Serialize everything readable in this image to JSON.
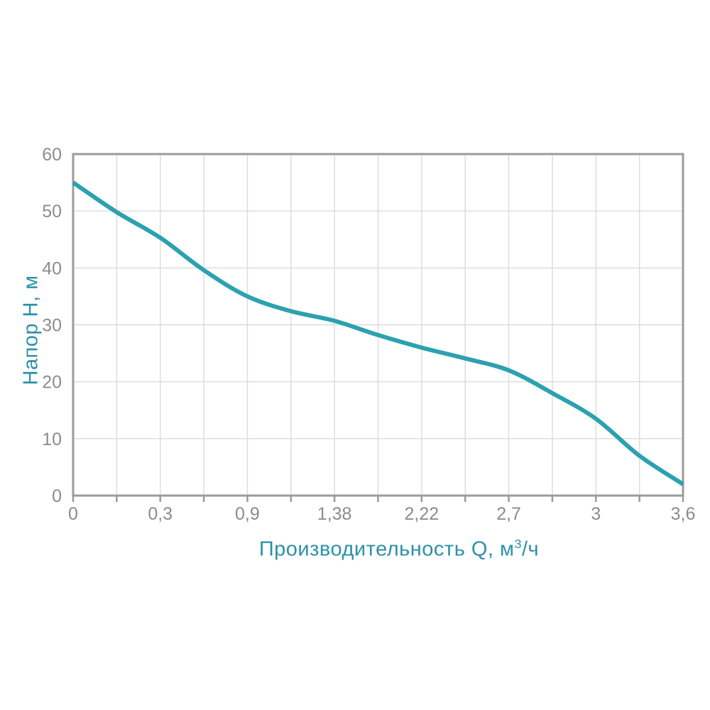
{
  "chart_data": {
    "type": "line",
    "title": "",
    "xlabel": {
      "prefix": "Производительность Q, м",
      "sup": "3",
      "suffix": "/ч"
    },
    "xlabel_plain": "Производительность Q, м3/ч",
    "ylabel": "Напор Н, м",
    "ylim": [
      0,
      60
    ],
    "y_ticks": [
      0,
      10,
      20,
      30,
      40,
      50,
      60
    ],
    "x_tick_labels": [
      "0",
      "0,3",
      "0,9",
      "1,38",
      "2,22",
      "2,7",
      "3",
      "3,6"
    ],
    "x_tick_values": [
      0,
      0.3,
      0.9,
      1.38,
      2.22,
      2.7,
      3,
      3.6
    ],
    "x_axis_note": "labeled ticks are evenly spaced despite non-uniform values; unlabeled minor ticks sit at the midpoint of each interval",
    "grid": true,
    "legend_position": "none",
    "series": [
      {
        "name": "pump-head-curve H(Q)",
        "points": [
          {
            "q": 0,
            "h": 55
          },
          {
            "q": 0.15,
            "h": 49.8
          },
          {
            "q": 0.3,
            "h": 45.3
          },
          {
            "q": 0.6,
            "h": 39.6
          },
          {
            "q": 0.9,
            "h": 35
          },
          {
            "q": 1.14,
            "h": 32.4
          },
          {
            "q": 1.38,
            "h": 30.7
          },
          {
            "q": 1.8,
            "h": 28.2
          },
          {
            "q": 2.22,
            "h": 26
          },
          {
            "q": 2.46,
            "h": 24.1
          },
          {
            "q": 2.7,
            "h": 22
          },
          {
            "q": 2.85,
            "h": 18
          },
          {
            "q": 3,
            "h": 13.5
          },
          {
            "q": 3.3,
            "h": 7
          },
          {
            "q": 3.6,
            "h": 2
          }
        ]
      }
    ],
    "style": {
      "curve_color": "#2CA1AF",
      "axis_color": "#9B9B9B",
      "grid_color": "#DBDBDB",
      "tick_label_color": "#8C8C8C",
      "title_color": "#2C91A8",
      "background": "#FFFFFF"
    }
  }
}
